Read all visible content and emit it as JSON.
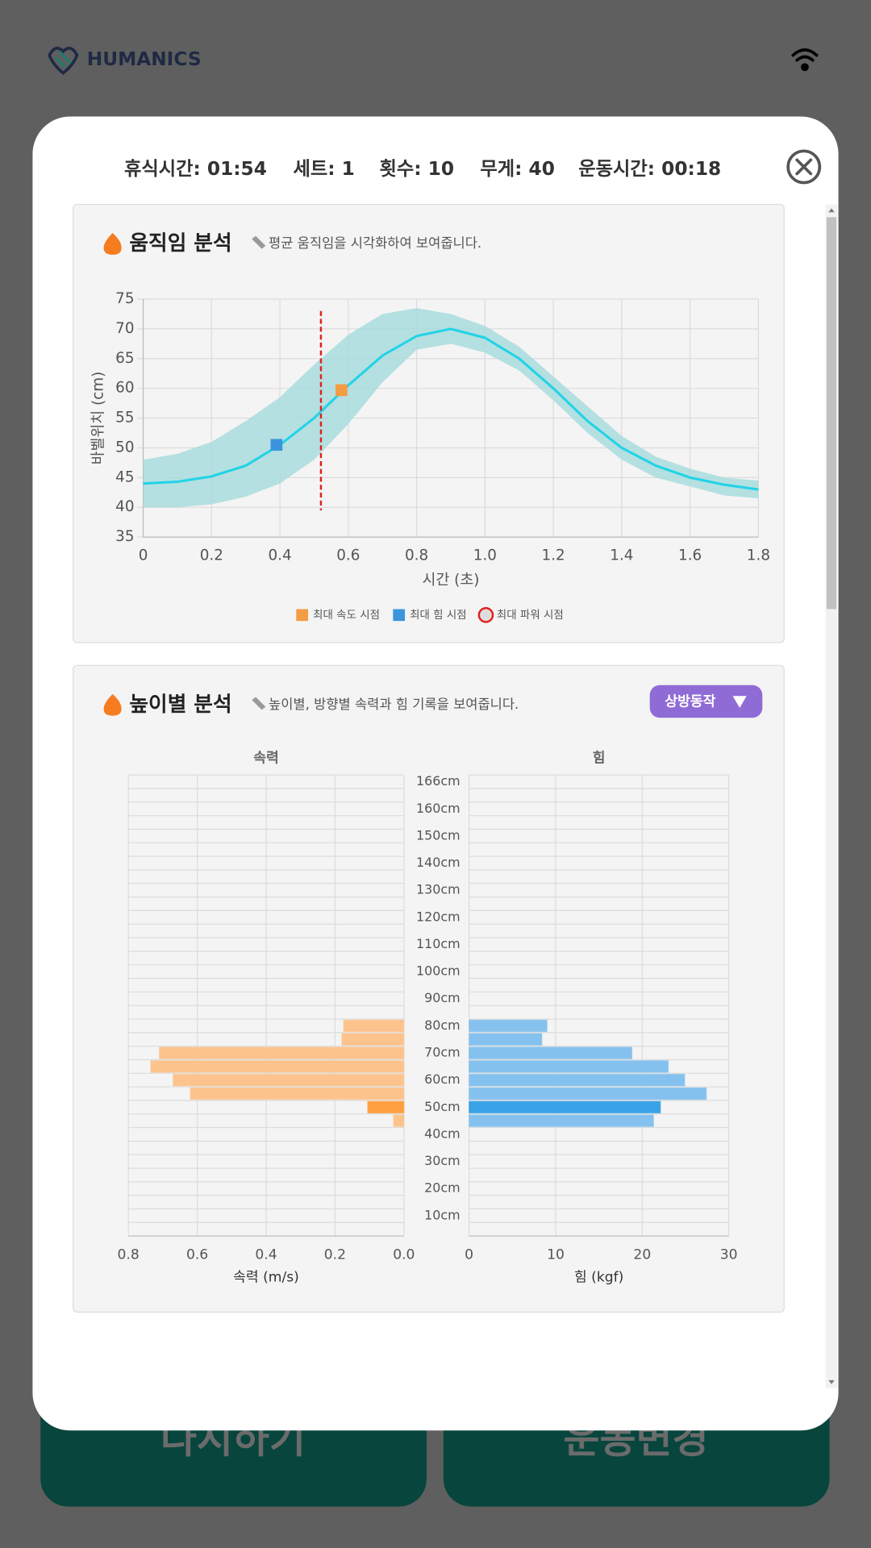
{
  "header": {
    "logo": "HUMANICS"
  },
  "background_buttons": [
    "다시하기",
    "운동변경"
  ],
  "stats": [
    "휴식시간: 01:54",
    "세트: 1",
    "횟수: 10",
    "무게: 40",
    "운동시간: 00:18"
  ],
  "panels": [
    {
      "title": "움직임 분석",
      "subtitle": "평균 움직임을 시각화하여 보여줍니다."
    },
    {
      "title": "높이별 분석",
      "subtitle": "높이별, 방향별 속력과 힘 기록을 보여줍니다.",
      "button": "상방동작"
    }
  ],
  "chart_data": [
    {
      "type": "line",
      "xlabel": "시간 (초)",
      "ylabel": "바벨위치 (cm)",
      "x": [
        0,
        0.1,
        0.2,
        0.3,
        0.4,
        0.5,
        0.6,
        0.7,
        0.8,
        0.9,
        1.0,
        1.1,
        1.2,
        1.3,
        1.4,
        1.5,
        1.6,
        1.7,
        1.8
      ],
      "series": [
        {
          "color": "#22d3e6",
          "values": [
            44,
            44.3,
            45.2,
            47,
            50.5,
            55,
            60.5,
            65.5,
            68.8,
            70,
            68.5,
            65,
            60,
            54.5,
            50,
            47,
            45,
            43.8,
            43
          ]
        }
      ],
      "band": {
        "color": "#a8dcdd",
        "upper": [
          48,
          49,
          51,
          54.5,
          58.5,
          64,
          69,
          72.5,
          73.5,
          72.5,
          70.5,
          67,
          62,
          57,
          52,
          48.5,
          46.5,
          45,
          44.5
        ],
        "lower": [
          40,
          40,
          40.5,
          41.8,
          44,
          48,
          54,
          61,
          66.5,
          67.5,
          66,
          63,
          58,
          52.5,
          48,
          45,
          43.5,
          42,
          41.5
        ]
      },
      "markers": [
        {
          "name": "최대 속도 시점",
          "color": "#f39c43",
          "x": 0.58,
          "y": 59.7
        },
        {
          "name": "최대 힘 시점",
          "color": "#3b95dc",
          "x": 0.39,
          "y": 50.5
        },
        {
          "name": "최대 파워 시점",
          "color": "#e02020",
          "x": 0.52
        }
      ],
      "xlim": [
        0,
        1.8
      ],
      "ylim": [
        35,
        75
      ],
      "xticks": [
        0,
        0.2,
        0.4,
        0.6,
        0.8,
        {
          "value": 1,
          "label": "1.0"
        },
        1.2,
        1.4,
        1.6,
        1.8
      ],
      "yticks": [
        35,
        40,
        45,
        50,
        55,
        60,
        65,
        70,
        75
      ],
      "grid": true
    },
    {
      "type": "hbar",
      "title": "속력",
      "xlabel": "속력 (m/s)",
      "categories": [
        "166cm",
        null,
        "160cm",
        null,
        "150cm",
        null,
        "140cm",
        null,
        "130cm",
        null,
        "120cm",
        null,
        "110cm",
        null,
        "100cm",
        null,
        "90cm",
        null,
        "80cm",
        null,
        "70cm",
        null,
        "60cm",
        null,
        "50cm",
        null,
        "40cm",
        null,
        "30cm",
        null,
        "20cm",
        null,
        "10cm",
        null
      ],
      "values": [
        null,
        null,
        null,
        null,
        null,
        null,
        null,
        null,
        null,
        null,
        null,
        null,
        null,
        null,
        null,
        null,
        null,
        null,
        0.175,
        0.18,
        0.71,
        0.735,
        0.67,
        0.62,
        0.105,
        0.03,
        null,
        null,
        null,
        null,
        null,
        null,
        null,
        null
      ],
      "color": "#fdc38d",
      "highlight": {
        "index": 24,
        "color": "#ffa040"
      },
      "xlim": [
        0.8,
        0
      ],
      "xticks": [
        0.8,
        0.6,
        0.4,
        0.2,
        {
          "value": 0,
          "label": "0.0"
        }
      ],
      "grid": true
    },
    {
      "type": "hbar",
      "title": "힘",
      "xlabel": "힘 (kgf)",
      "values": [
        null,
        null,
        null,
        null,
        null,
        null,
        null,
        null,
        null,
        null,
        null,
        null,
        null,
        null,
        null,
        null,
        null,
        null,
        9.0,
        8.4,
        18.8,
        23,
        24.9,
        27.4,
        22.1,
        21.3,
        null,
        null,
        null,
        null,
        null,
        null,
        null,
        null
      ],
      "color": "#85c1ee",
      "highlight": {
        "index": 24,
        "color": "#3aa2e6"
      },
      "xlim": [
        0,
        30
      ],
      "xticks": [
        0,
        10,
        20,
        30
      ],
      "grid": true
    }
  ]
}
